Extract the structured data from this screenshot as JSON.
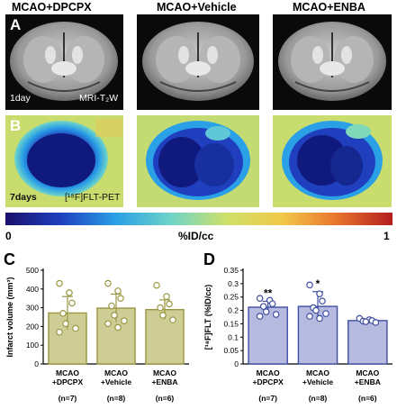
{
  "columns": [
    "MCAO+DPCPX",
    "MCAO+Vehicle",
    "MCAO+ENBA"
  ],
  "row_a": {
    "letter": "A",
    "time_label": "1day",
    "modality_label": "MRI-T₂W"
  },
  "row_b": {
    "letter": "B",
    "time_label": "7days",
    "modality_label": "[¹⁸F]FLT-PET"
  },
  "colorbar": {
    "min_label": "0",
    "max_label": "1",
    "unit_label": "%ID/cc",
    "colors": [
      "#1a0f6b",
      "#1f3fbf",
      "#2aa0e6",
      "#6fd4c8",
      "#cfe06a",
      "#f2c94a",
      "#e8732e",
      "#b31d1d"
    ]
  },
  "colors": {
    "panel_c_fill": "#cfcd96",
    "panel_c_edge": "#9a9742",
    "panel_d_fill": "#b7badf",
    "panel_d_edge": "#3f4fa3"
  },
  "chart_data": [
    {
      "panel": "C",
      "type": "bar",
      "ylabel": "Infarct volume (mm³)",
      "ylim": [
        0,
        500
      ],
      "yticks": [
        "0",
        "100",
        "200",
        "300",
        "400",
        "500"
      ],
      "categories": [
        "MCAO\n+DPCPX",
        "MCAO\n+Vehicle",
        "MCAO\n+ENBA"
      ],
      "n_labels": [
        "(n=7)",
        "(n=8)",
        "(n=6)"
      ],
      "values": [
        272,
        298,
        290
      ],
      "errors": [
        88,
        75,
        52
      ],
      "points": [
        [
          430,
          380,
          325,
          270,
          215,
          190,
          170
        ],
        [
          430,
          390,
          350,
          310,
          260,
          230,
          215,
          195
        ],
        [
          420,
          360,
          320,
          300,
          260,
          235
        ]
      ],
      "significance": [
        "",
        "",
        ""
      ]
    },
    {
      "panel": "D",
      "type": "bar",
      "ylabel": "[¹⁸F]FLT (%ID/cc)",
      "ylim": [
        0,
        0.35
      ],
      "yticks": [
        "0",
        "0.05",
        "0.1",
        "0.15",
        "0.2",
        "0.25",
        "0.3",
        "0.35"
      ],
      "categories": [
        "MCAO\n+DPCPX",
        "MCAO\n+Vehicle",
        "MCAO\n+ENBA"
      ],
      "n_labels": [
        "(n=7)",
        "(n=8)",
        "(n=6)"
      ],
      "values": [
        0.212,
        0.215,
        0.162
      ],
      "errors": [
        0.022,
        0.055,
        0.006
      ],
      "points": [
        [
          0.245,
          0.238,
          0.225,
          0.215,
          0.195,
          0.185,
          0.178
        ],
        [
          0.295,
          0.262,
          0.235,
          0.21,
          0.2,
          0.188,
          0.178,
          0.17
        ],
        [
          0.17,
          0.165,
          0.162,
          0.16,
          0.158,
          0.155
        ]
      ],
      "significance": [
        "**",
        "*",
        ""
      ]
    }
  ]
}
